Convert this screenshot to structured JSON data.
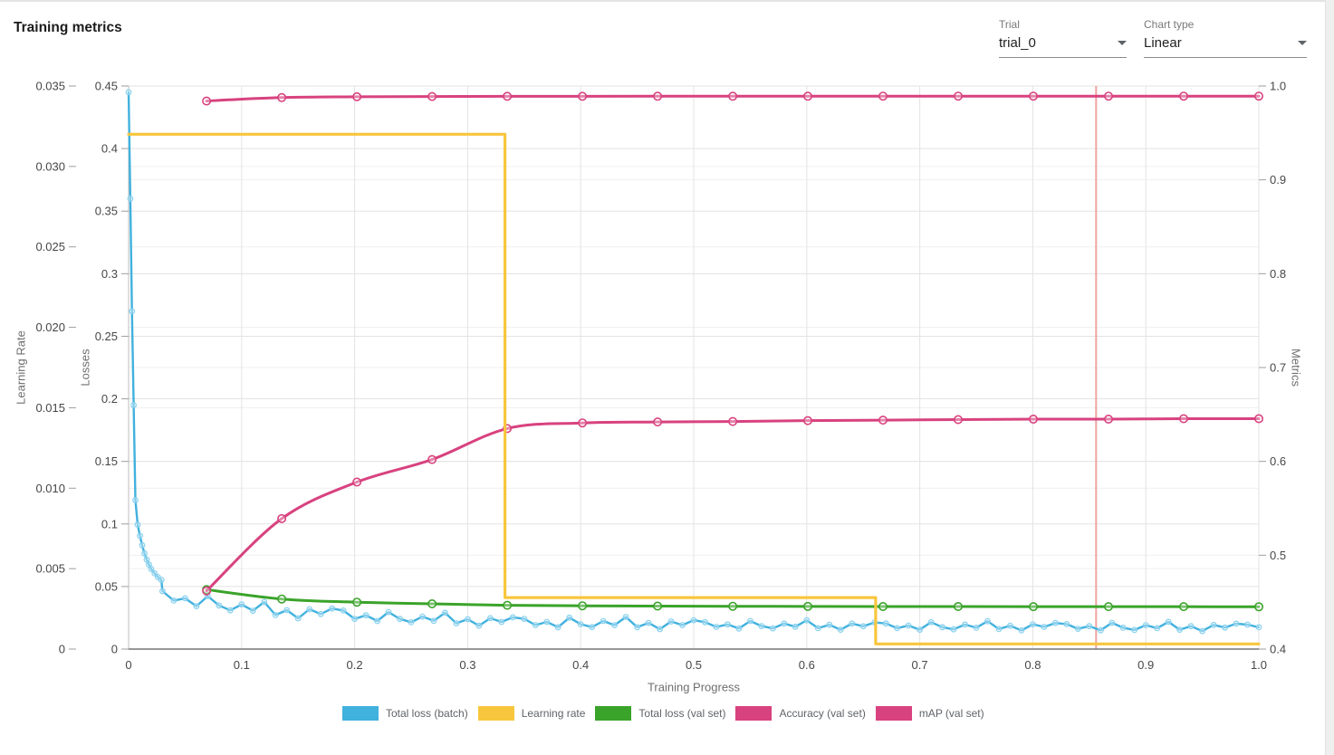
{
  "header": {
    "title": "Training metrics"
  },
  "controls": {
    "trial": {
      "label": "Trial",
      "value": "trial_0"
    },
    "chart_type": {
      "label": "Chart type",
      "value": "Linear"
    }
  },
  "legend": {
    "items": [
      {
        "label": "Total loss (batch)",
        "color": "#41b1de"
      },
      {
        "label": "Learning rate",
        "color": "#f8c63d"
      },
      {
        "label": "Total loss (val set)",
        "color": "#3aa32a"
      },
      {
        "label": "Accuracy (val set)",
        "color": "#d8427f"
      },
      {
        "label": "mAP (val set)",
        "color": "#d8427f"
      }
    ]
  },
  "chart_data": {
    "type": "line",
    "title": "Training metrics",
    "grid": true,
    "legend_position": "bottom",
    "progress_marker": {
      "x": 0.856,
      "color": "#f0a3a2"
    },
    "x_axis": {
      "title": "Training Progress",
      "min": 0,
      "max": 1,
      "ticks": [
        0,
        0.1,
        0.2,
        0.3,
        0.4,
        0.5,
        0.6,
        0.7,
        0.8,
        0.9,
        1.0
      ],
      "tick_labels": [
        "0",
        "0.1",
        "0.2",
        "0.3",
        "0.4",
        "0.5",
        "0.6",
        "0.7",
        "0.8",
        "0.9",
        "1.0"
      ]
    },
    "y_axes": {
      "lr": {
        "title": "Learning Rate",
        "min": 0,
        "max": 0.035,
        "ticks": [
          0.035,
          0.03,
          0.025,
          0.02,
          0.015,
          0.01,
          0.005,
          0
        ],
        "tick_labels": [
          "0.035",
          "0.030",
          "0.025",
          "0.020",
          "0.015",
          "0.010",
          "0.005",
          "0"
        ]
      },
      "losses": {
        "title": "Losses",
        "min": 0,
        "max": 0.45,
        "ticks": [
          0.45,
          0.4,
          0.35,
          0.3,
          0.25,
          0.2,
          0.15,
          0.1,
          0.05,
          0
        ],
        "tick_labels": [
          "0.45",
          "0.4",
          "0.35",
          "0.3",
          "0.25",
          "0.2",
          "0.15",
          "0.1",
          "0.05",
          "0"
        ]
      },
      "metrics": {
        "title": "Metrics",
        "min": 0.4,
        "max": 1.0,
        "ticks": [
          1.0,
          0.9,
          0.8,
          0.7,
          0.6,
          0.5,
          0.4
        ],
        "tick_labels": [
          "1.0",
          "0.9",
          "0.8",
          "0.7",
          "0.6",
          "0.5",
          "0.4"
        ]
      }
    },
    "series": [
      {
        "name": "Total loss (batch)",
        "axis": "losses",
        "color": "#41b1de",
        "marker_color": "#86d0ee",
        "line_width": 2.4,
        "smooth": false,
        "markers": true,
        "marker_r": 2.8,
        "draw_order": 1,
        "x": [
          0,
          0.0015,
          0.003,
          0.0045,
          0.006,
          0.008,
          0.01,
          0.012,
          0.014,
          0.016,
          0.018,
          0.02,
          0.023,
          0.026,
          0.029,
          0.03,
          0.04,
          0.05,
          0.06,
          0.07,
          0.08,
          0.09,
          0.1,
          0.11,
          0.12,
          0.13,
          0.14,
          0.15,
          0.16,
          0.17,
          0.18,
          0.19,
          0.2,
          0.21,
          0.22,
          0.23,
          0.24,
          0.25,
          0.26,
          0.27,
          0.28,
          0.29,
          0.3,
          0.31,
          0.32,
          0.33,
          0.34,
          0.35,
          0.36,
          0.37,
          0.38,
          0.39,
          0.4,
          0.41,
          0.42,
          0.43,
          0.44,
          0.45,
          0.46,
          0.47,
          0.48,
          0.49,
          0.5,
          0.51,
          0.52,
          0.53,
          0.54,
          0.55,
          0.56,
          0.57,
          0.58,
          0.59,
          0.6,
          0.61,
          0.62,
          0.63,
          0.64,
          0.65,
          0.66,
          0.67,
          0.68,
          0.69,
          0.7,
          0.71,
          0.72,
          0.73,
          0.74,
          0.75,
          0.76,
          0.77,
          0.78,
          0.79,
          0.8,
          0.81,
          0.82,
          0.83,
          0.84,
          0.85,
          0.86,
          0.87,
          0.88,
          0.89,
          0.9,
          0.91,
          0.92,
          0.93,
          0.94,
          0.95,
          0.96,
          0.97,
          0.98,
          0.99,
          1.0
        ],
        "y": [
          0.445,
          0.36,
          0.27,
          0.195,
          0.119,
          0.0995,
          0.0905,
          0.083,
          0.0765,
          0.0715,
          0.0675,
          0.064,
          0.0605,
          0.0575,
          0.0553,
          0.0463,
          0.0388,
          0.0406,
          0.0343,
          0.0423,
          0.0349,
          0.031,
          0.0357,
          0.0307,
          0.0376,
          0.0272,
          0.0311,
          0.0246,
          0.0318,
          0.028,
          0.0324,
          0.0308,
          0.0242,
          0.027,
          0.0224,
          0.0296,
          0.0241,
          0.0214,
          0.026,
          0.0226,
          0.029,
          0.0206,
          0.0239,
          0.0187,
          0.0247,
          0.0217,
          0.0254,
          0.0242,
          0.0192,
          0.0217,
          0.0175,
          0.0251,
          0.0199,
          0.0176,
          0.0224,
          0.0191,
          0.0257,
          0.0175,
          0.0209,
          0.0159,
          0.0221,
          0.0192,
          0.0231,
          0.0215,
          0.0177,
          0.0197,
          0.0164,
          0.0224,
          0.0184,
          0.0166,
          0.0204,
          0.0179,
          0.023,
          0.0167,
          0.0194,
          0.0155,
          0.0204,
          0.0182,
          0.0213,
          0.0205,
          0.0167,
          0.0188,
          0.0155,
          0.0215,
          0.0175,
          0.0158,
          0.0196,
          0.0171,
          0.0223,
          0.016,
          0.0187,
          0.0149,
          0.0198,
          0.0177,
          0.0208,
          0.02,
          0.0162,
          0.0183,
          0.015,
          0.021,
          0.0171,
          0.0153,
          0.0191,
          0.0167,
          0.0218,
          0.0155,
          0.0183,
          0.0144,
          0.0193,
          0.0172,
          0.0203,
          0.0195,
          0.0174
        ]
      },
      {
        "name": "Total loss (val set)",
        "axis": "losses",
        "color": "#3aa32a",
        "marker_color": "#3aa32a",
        "line_width": 3,
        "smooth": true,
        "markers": true,
        "marker_r": 4.2,
        "draw_order": 2,
        "x": [
          0.069,
          0.1355,
          0.202,
          0.2685,
          0.335,
          0.4015,
          0.468,
          0.5345,
          0.601,
          0.6675,
          0.734,
          0.8005,
          0.867,
          0.9335,
          1.0
        ],
        "y": [
          0.0475,
          0.04,
          0.0375,
          0.0362,
          0.035,
          0.0346,
          0.0344,
          0.0342,
          0.0341,
          0.034,
          0.034,
          0.0339,
          0.0339,
          0.0339,
          0.0338
        ]
      },
      {
        "name": "Accuracy (val set)",
        "axis": "metrics",
        "color": "#d8427f",
        "marker_color": "#d8427f",
        "line_width": 3,
        "smooth": true,
        "markers": true,
        "marker_r": 4.2,
        "draw_order": 3,
        "x": [
          0.069,
          0.1355,
          0.202,
          0.2685,
          0.335,
          0.4015,
          0.468,
          0.5345,
          0.601,
          0.6675,
          0.734,
          0.8005,
          0.867,
          0.9335,
          1.0
        ],
        "y": [
          0.984,
          0.9877,
          0.9885,
          0.9888,
          0.989,
          0.989,
          0.9891,
          0.9891,
          0.9891,
          0.9892,
          0.9892,
          0.9892,
          0.9892,
          0.9892,
          0.9892
        ]
      },
      {
        "name": "mAP (val set)",
        "axis": "metrics",
        "color": "#d8427f",
        "marker_color": "#d8427f",
        "line_width": 3,
        "smooth": true,
        "markers": true,
        "marker_r": 4.2,
        "draw_order": 4,
        "x": [
          0.069,
          0.1355,
          0.202,
          0.2685,
          0.335,
          0.4015,
          0.468,
          0.5345,
          0.601,
          0.6675,
          0.734,
          0.8005,
          0.867,
          0.9335,
          1.0
        ],
        "y": [
          0.462,
          0.539,
          0.578,
          0.602,
          0.635,
          0.641,
          0.642,
          0.6425,
          0.6435,
          0.644,
          0.6445,
          0.645,
          0.645,
          0.6455,
          0.6455
        ]
      },
      {
        "name": "Learning rate",
        "axis": "lr",
        "color": "#f8c63d",
        "marker_color": "#f8c63d",
        "line_width": 3.2,
        "smooth": false,
        "markers": false,
        "marker_r": 0,
        "draw_order": 5,
        "x": [
          0,
          0.333,
          0.333,
          0.661,
          0.661,
          1.0
        ],
        "y": [
          0.032,
          0.032,
          0.0032,
          0.0032,
          0.00032,
          0.00032
        ]
      }
    ]
  }
}
